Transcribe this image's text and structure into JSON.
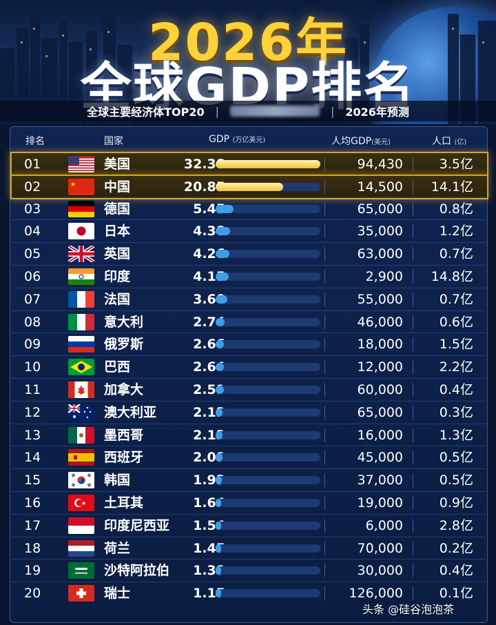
{
  "header": {
    "title_line1": "2026年",
    "title_line2": "全球GDP排名",
    "subtitle_left": "全球主要经济体TOP20",
    "subtitle_right": "2026年预测"
  },
  "columns": {
    "rank": "排名",
    "country": "国家",
    "gdp": "GDP",
    "gdp_unit": "(万亿美元)",
    "per_capita": "人均GDP",
    "per_capita_unit": "(美元)",
    "population": "人口",
    "population_unit": "(亿)"
  },
  "chart_data": {
    "type": "table",
    "gdp_bar_max": 32.38,
    "rows": [
      {
        "rank": "01",
        "country": "美国",
        "gdp": "32.38",
        "gdp_value": 32.38,
        "per_capita": "94,430",
        "population": "3.5亿",
        "flag": "us-flag-icon",
        "highlight": true
      },
      {
        "rank": "02",
        "country": "中国",
        "gdp": "20.85",
        "gdp_value": 20.85,
        "per_capita": "14,500",
        "population": "14.1亿",
        "flag": "cn-flag-icon",
        "highlight": true
      },
      {
        "rank": "03",
        "country": "德国",
        "gdp": "5.45",
        "gdp_value": 5.45,
        "per_capita": "65,000",
        "population": "0.8亿",
        "flag": "de-flag-icon"
      },
      {
        "rank": "04",
        "country": "日本",
        "gdp": "4.38",
        "gdp_value": 4.38,
        "per_capita": "35,000",
        "population": "1.2亿",
        "flag": "jp-flag-icon"
      },
      {
        "rank": "05",
        "country": "英国",
        "gdp": "4.26",
        "gdp_value": 4.26,
        "per_capita": "63,000",
        "population": "0.7亿",
        "flag": "gb-flag-icon"
      },
      {
        "rank": "06",
        "country": "印度",
        "gdp": "4.15",
        "gdp_value": 4.15,
        "per_capita": "2,900",
        "population": "14.8亿",
        "flag": "in-flag-icon"
      },
      {
        "rank": "07",
        "country": "法国",
        "gdp": "3.60",
        "gdp_value": 3.6,
        "per_capita": "55,000",
        "population": "0.7亿",
        "flag": "fr-flag-icon"
      },
      {
        "rank": "08",
        "country": "意大利",
        "gdp": "2.74",
        "gdp_value": 2.74,
        "per_capita": "46,000",
        "population": "0.6亿",
        "flag": "it-flag-icon"
      },
      {
        "rank": "09",
        "country": "俄罗斯",
        "gdp": "2.66",
        "gdp_value": 2.66,
        "per_capita": "18,000",
        "population": "1.5亿",
        "flag": "ru-flag-icon"
      },
      {
        "rank": "10",
        "country": "巴西",
        "gdp": "2.64",
        "gdp_value": 2.64,
        "per_capita": "12,000",
        "population": "2.2亿",
        "flag": "br-flag-icon"
      },
      {
        "rank": "11",
        "country": "加拿大",
        "gdp": "2.51",
        "gdp_value": 2.51,
        "per_capita": "60,000",
        "population": "0.4亿",
        "flag": "ca-flag-icon"
      },
      {
        "rank": "12",
        "country": "澳大利亚",
        "gdp": "2.12",
        "gdp_value": 2.12,
        "per_capita": "65,000",
        "population": "0.3亿",
        "flag": "au-flag-icon"
      },
      {
        "rank": "13",
        "country": "墨西哥",
        "gdp": "2.12",
        "gdp_value": 2.12,
        "per_capita": "16,000",
        "population": "1.3亿",
        "flag": "mx-flag-icon"
      },
      {
        "rank": "14",
        "country": "西班牙",
        "gdp": "2.09",
        "gdp_value": 2.09,
        "per_capita": "45,000",
        "population": "0.5亿",
        "flag": "es-flag-icon"
      },
      {
        "rank": "15",
        "country": "韩国",
        "gdp": "1.93",
        "gdp_value": 1.93,
        "per_capita": "37,000",
        "population": "0.5亿",
        "flag": "kr-flag-icon"
      },
      {
        "rank": "16",
        "country": "土耳其",
        "gdp": "1.64",
        "gdp_value": 1.64,
        "per_capita": "19,000",
        "population": "0.9亿",
        "flag": "tr-flag-icon"
      },
      {
        "rank": "17",
        "country": "印度尼西亚",
        "gdp": "1.54",
        "gdp_value": 1.54,
        "per_capita": "6,000",
        "population": "2.8亿",
        "flag": "id-flag-icon"
      },
      {
        "rank": "18",
        "country": "荷兰",
        "gdp": "1.45",
        "gdp_value": 1.45,
        "per_capita": "70,000",
        "population": "0.2亿",
        "flag": "nl-flag-icon"
      },
      {
        "rank": "19",
        "country": "沙特阿拉伯",
        "gdp": "1.39",
        "gdp_value": 1.39,
        "per_capita": "30,000",
        "population": "0.4亿",
        "flag": "sa-flag-icon"
      },
      {
        "rank": "20",
        "country": "瑞士",
        "gdp": "1.15",
        "gdp_value": 1.15,
        "per_capita": "126,000",
        "population": "0.1亿",
        "flag": "ch-flag-icon"
      }
    ]
  },
  "watermark": "头条 @硅谷泡泡茶"
}
